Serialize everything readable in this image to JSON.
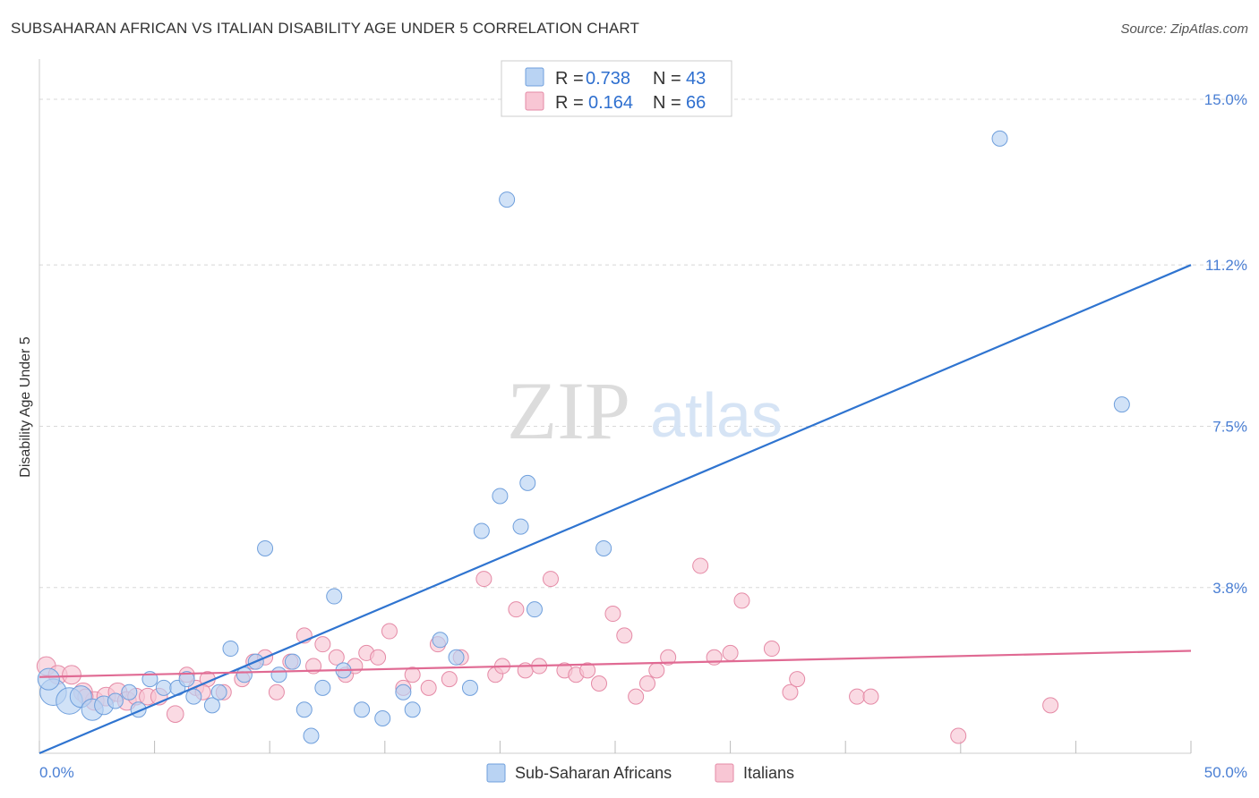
{
  "title": "SUBSAHARAN AFRICAN VS ITALIAN DISABILITY AGE UNDER 5 CORRELATION CHART",
  "source": "Source: ZipAtlas.com",
  "watermark": {
    "zip": "ZIP",
    "atlas": "atlas"
  },
  "legend_top": [
    {
      "r_label": "R =",
      "r_value": "0.738",
      "n_label": "N =",
      "n_value": "43",
      "color": "#a8c8f0"
    },
    {
      "r_label": "R =",
      "r_value": "0.164",
      "n_label": "N =",
      "n_value": "66",
      "color": "#f6b8cb"
    }
  ],
  "colors": {
    "blue_fill": "#b9d3f3",
    "blue_stroke": "#6f9fdc",
    "blue_line": "#2f74d0",
    "pink_fill": "#f8c6d4",
    "pink_stroke": "#e58aa6",
    "pink_line": "#e06a93",
    "grid": "#d8d8d8",
    "axis_text": "#4a7fd4"
  },
  "chart_data": {
    "type": "scatter",
    "title": "SUBSAHARAN AFRICAN VS ITALIAN DISABILITY AGE UNDER 5 CORRELATION CHART",
    "xlabel": "",
    "ylabel": "Disability Age Under 5",
    "xlim": [
      0,
      50
    ],
    "ylim": [
      0,
      15.8
    ],
    "x_tick_labels": [
      "0.0%",
      "50.0%"
    ],
    "y_ticks": [
      3.8,
      7.5,
      11.2,
      15.0
    ],
    "y_tick_labels": [
      "3.8%",
      "7.5%",
      "11.2%",
      "15.0%"
    ],
    "legend": [
      "Sub-Saharan Africans",
      "Italians"
    ],
    "series": [
      {
        "name": "Sub-Saharan Africans",
        "r": 0.738,
        "n": 43,
        "trend": {
          "x": [
            0,
            50
          ],
          "y": [
            0.0,
            11.2
          ]
        },
        "points": [
          {
            "x": 0.6,
            "y": 1.4,
            "s": 3
          },
          {
            "x": 1.3,
            "y": 1.2,
            "s": 3
          },
          {
            "x": 1.8,
            "y": 1.3,
            "s": 2
          },
          {
            "x": 2.3,
            "y": 1.0,
            "s": 2
          },
          {
            "x": 2.8,
            "y": 1.1,
            "s": 1.5
          },
          {
            "x": 3.3,
            "y": 1.2,
            "s": 1
          },
          {
            "x": 3.9,
            "y": 1.4,
            "s": 1
          },
          {
            "x": 4.3,
            "y": 1.0,
            "s": 1
          },
          {
            "x": 4.8,
            "y": 1.7,
            "s": 1
          },
          {
            "x": 5.4,
            "y": 1.5,
            "s": 1
          },
          {
            "x": 6.0,
            "y": 1.5,
            "s": 1
          },
          {
            "x": 6.4,
            "y": 1.7,
            "s": 1
          },
          {
            "x": 6.7,
            "y": 1.3,
            "s": 1
          },
          {
            "x": 7.5,
            "y": 1.1,
            "s": 1
          },
          {
            "x": 7.8,
            "y": 1.4,
            "s": 1
          },
          {
            "x": 8.3,
            "y": 2.4,
            "s": 1
          },
          {
            "x": 8.9,
            "y": 1.8,
            "s": 1
          },
          {
            "x": 9.4,
            "y": 2.1,
            "s": 1
          },
          {
            "x": 9.8,
            "y": 4.7,
            "s": 1
          },
          {
            "x": 10.4,
            "y": 1.8,
            "s": 1
          },
          {
            "x": 11.0,
            "y": 2.1,
            "s": 1
          },
          {
            "x": 11.5,
            "y": 1.0,
            "s": 1
          },
          {
            "x": 11.8,
            "y": 0.4,
            "s": 1
          },
          {
            "x": 12.3,
            "y": 1.5,
            "s": 1
          },
          {
            "x": 12.8,
            "y": 3.6,
            "s": 1
          },
          {
            "x": 13.2,
            "y": 1.9,
            "s": 1
          },
          {
            "x": 14.0,
            "y": 1.0,
            "s": 1
          },
          {
            "x": 14.9,
            "y": 0.8,
            "s": 1
          },
          {
            "x": 15.8,
            "y": 1.4,
            "s": 1
          },
          {
            "x": 16.2,
            "y": 1.0,
            "s": 1
          },
          {
            "x": 17.4,
            "y": 2.6,
            "s": 1
          },
          {
            "x": 18.1,
            "y": 2.2,
            "s": 1
          },
          {
            "x": 18.7,
            "y": 1.5,
            "s": 1
          },
          {
            "x": 19.2,
            "y": 5.1,
            "s": 1
          },
          {
            "x": 20.0,
            "y": 5.9,
            "s": 1
          },
          {
            "x": 20.3,
            "y": 12.7,
            "s": 1
          },
          {
            "x": 20.9,
            "y": 5.2,
            "s": 1
          },
          {
            "x": 21.2,
            "y": 6.2,
            "s": 1
          },
          {
            "x": 21.5,
            "y": 3.3,
            "s": 1
          },
          {
            "x": 24.5,
            "y": 4.7,
            "s": 1
          },
          {
            "x": 41.7,
            "y": 14.1,
            "s": 1
          },
          {
            "x": 47.0,
            "y": 8.0,
            "s": 1
          },
          {
            "x": 0.4,
            "y": 1.7,
            "s": 2
          }
        ]
      },
      {
        "name": "Italians",
        "r": 0.164,
        "n": 66,
        "trend": {
          "x": [
            0,
            50
          ],
          "y": [
            1.75,
            2.35
          ]
        },
        "points": [
          {
            "x": 0.3,
            "y": 2.0,
            "s": 1.5
          },
          {
            "x": 0.8,
            "y": 1.8,
            "s": 1.5
          },
          {
            "x": 1.4,
            "y": 1.8,
            "s": 1.5
          },
          {
            "x": 1.9,
            "y": 1.4,
            "s": 1.5
          },
          {
            "x": 2.4,
            "y": 1.2,
            "s": 1.5
          },
          {
            "x": 2.9,
            "y": 1.3,
            "s": 1.5
          },
          {
            "x": 3.4,
            "y": 1.4,
            "s": 1.5
          },
          {
            "x": 3.8,
            "y": 1.2,
            "s": 1.5
          },
          {
            "x": 4.2,
            "y": 1.3,
            "s": 1.2
          },
          {
            "x": 4.7,
            "y": 1.3,
            "s": 1.2
          },
          {
            "x": 5.2,
            "y": 1.3,
            "s": 1.2
          },
          {
            "x": 5.9,
            "y": 0.9,
            "s": 1.2
          },
          {
            "x": 6.4,
            "y": 1.8,
            "s": 1
          },
          {
            "x": 6.8,
            "y": 1.5,
            "s": 1
          },
          {
            "x": 7.3,
            "y": 1.7,
            "s": 1
          },
          {
            "x": 8.0,
            "y": 1.4,
            "s": 1
          },
          {
            "x": 8.8,
            "y": 1.7,
            "s": 1
          },
          {
            "x": 9.3,
            "y": 2.1,
            "s": 1
          },
          {
            "x": 9.8,
            "y": 2.2,
            "s": 1
          },
          {
            "x": 10.3,
            "y": 1.4,
            "s": 1
          },
          {
            "x": 10.9,
            "y": 2.1,
            "s": 1
          },
          {
            "x": 11.5,
            "y": 2.7,
            "s": 1
          },
          {
            "x": 11.9,
            "y": 2.0,
            "s": 1
          },
          {
            "x": 12.3,
            "y": 2.5,
            "s": 1
          },
          {
            "x": 12.9,
            "y": 2.2,
            "s": 1
          },
          {
            "x": 13.3,
            "y": 1.8,
            "s": 1
          },
          {
            "x": 13.7,
            "y": 2.0,
            "s": 1
          },
          {
            "x": 14.2,
            "y": 2.3,
            "s": 1
          },
          {
            "x": 14.7,
            "y": 2.2,
            "s": 1
          },
          {
            "x": 15.2,
            "y": 2.8,
            "s": 1
          },
          {
            "x": 15.8,
            "y": 1.5,
            "s": 1
          },
          {
            "x": 16.2,
            "y": 1.8,
            "s": 1
          },
          {
            "x": 16.9,
            "y": 1.5,
            "s": 1
          },
          {
            "x": 17.3,
            "y": 2.5,
            "s": 1
          },
          {
            "x": 17.8,
            "y": 1.7,
            "s": 1
          },
          {
            "x": 18.3,
            "y": 2.2,
            "s": 1
          },
          {
            "x": 19.3,
            "y": 4.0,
            "s": 1
          },
          {
            "x": 19.8,
            "y": 1.8,
            "s": 1
          },
          {
            "x": 20.1,
            "y": 2.0,
            "s": 1
          },
          {
            "x": 20.7,
            "y": 3.3,
            "s": 1
          },
          {
            "x": 21.1,
            "y": 1.9,
            "s": 1
          },
          {
            "x": 21.7,
            "y": 2.0,
            "s": 1
          },
          {
            "x": 22.2,
            "y": 4.0,
            "s": 1
          },
          {
            "x": 22.8,
            "y": 1.9,
            "s": 1
          },
          {
            "x": 23.3,
            "y": 1.8,
            "s": 1
          },
          {
            "x": 23.8,
            "y": 1.9,
            "s": 1
          },
          {
            "x": 24.3,
            "y": 1.6,
            "s": 1
          },
          {
            "x": 24.9,
            "y": 3.2,
            "s": 1
          },
          {
            "x": 25.4,
            "y": 2.7,
            "s": 1
          },
          {
            "x": 25.9,
            "y": 1.3,
            "s": 1
          },
          {
            "x": 26.4,
            "y": 1.6,
            "s": 1
          },
          {
            "x": 26.8,
            "y": 1.9,
            "s": 1
          },
          {
            "x": 27.3,
            "y": 2.2,
            "s": 1
          },
          {
            "x": 28.7,
            "y": 4.3,
            "s": 1
          },
          {
            "x": 29.3,
            "y": 2.2,
            "s": 1
          },
          {
            "x": 30.0,
            "y": 2.3,
            "s": 1
          },
          {
            "x": 30.5,
            "y": 3.5,
            "s": 1
          },
          {
            "x": 31.8,
            "y": 2.4,
            "s": 1
          },
          {
            "x": 32.6,
            "y": 1.4,
            "s": 1
          },
          {
            "x": 32.9,
            "y": 1.7,
            "s": 1
          },
          {
            "x": 35.5,
            "y": 1.3,
            "s": 1
          },
          {
            "x": 36.1,
            "y": 1.3,
            "s": 1
          },
          {
            "x": 39.9,
            "y": 0.4,
            "s": 1
          },
          {
            "x": 43.9,
            "y": 1.1,
            "s": 1
          },
          {
            "x": 7.1,
            "y": 1.4,
            "s": 1
          },
          {
            "x": 2.0,
            "y": 1.3,
            "s": 1
          }
        ]
      }
    ]
  }
}
